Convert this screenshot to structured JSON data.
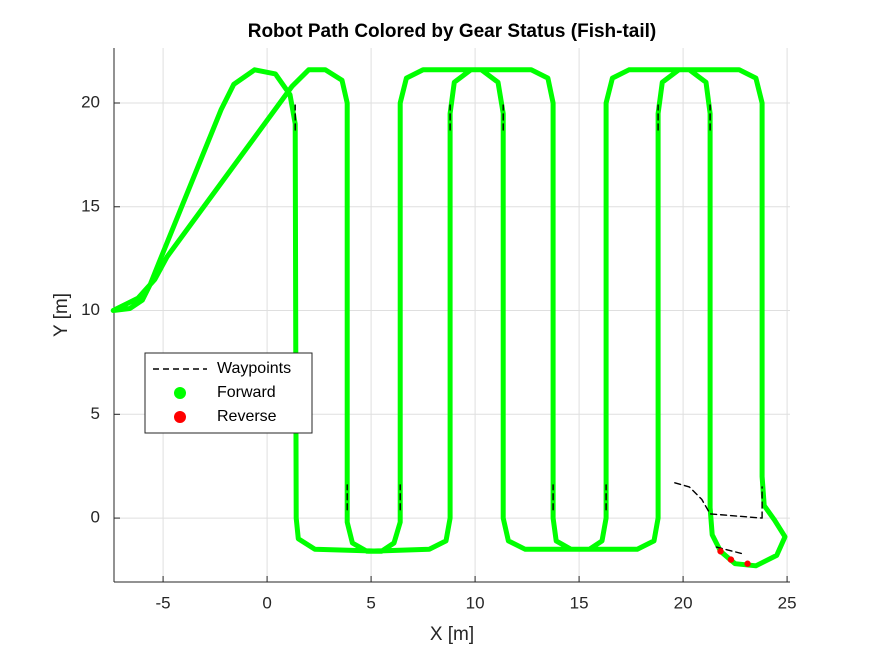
{
  "chart_data": {
    "type": "line",
    "title": "Robot Path Colored by Gear Status (Fish-tail)",
    "xlabel": "X [m]",
    "ylabel": "Y [m]",
    "xlim": [
      -7.36,
      25.14
    ],
    "ylim": [
      -3.08,
      22.65
    ],
    "xticks": [
      -5,
      0,
      5,
      10,
      15,
      20,
      25
    ],
    "yticks": [
      0,
      5,
      10,
      15,
      20
    ],
    "grid": true,
    "legend_position": "west",
    "series": [
      {
        "name": "Waypoints",
        "color": "#000000",
        "style": "dashed",
        "x": [
          1.35,
          1.35,
          null,
          8.8,
          8.8,
          null,
          11.35,
          11.35,
          null,
          18.8,
          18.8,
          null,
          21.3,
          21.3,
          null,
          3.85,
          3.85,
          null,
          6.4,
          6.4,
          null,
          13.75,
          13.75,
          null,
          16.3,
          16.3,
          null,
          23.8,
          23.8,
          null,
          19.6,
          20.3,
          20.9,
          21.3,
          23.8,
          null,
          21.6,
          22.8
        ],
        "y": [
          18.7,
          19.9,
          null,
          18.7,
          19.9,
          null,
          18.7,
          19.9,
          null,
          18.7,
          19.9,
          null,
          18.7,
          19.9,
          null,
          0.4,
          1.6,
          null,
          0.4,
          1.6,
          null,
          0.4,
          1.6,
          null,
          0.4,
          1.6,
          null,
          0.0,
          1.5,
          null,
          1.7,
          1.5,
          0.9,
          0.2,
          0.0,
          null,
          -1.4,
          -1.7
        ]
      },
      {
        "name": "Forward",
        "color": "#00ff00",
        "style": "thick",
        "x": [
          -7.4,
          -6.6,
          -6.0,
          -5.6,
          -5.2,
          -2.2,
          -1.6,
          -0.6,
          0.4,
          1.1,
          1.35,
          1.4,
          1.5,
          2.3,
          5.5,
          6.1,
          6.4,
          6.4,
          6.7,
          7.5,
          10.3,
          11.1,
          11.35,
          11.35,
          11.6,
          12.4,
          15.5,
          16.1,
          16.3,
          16.3,
          16.6,
          17.4,
          20.3,
          21.1,
          21.3,
          21.3,
          21.4,
          21.8,
          22.5,
          23.5,
          24.5,
          24.9,
          24.4,
          23.9,
          23.8,
          23.8,
          23.5,
          22.7,
          19.8,
          19.0,
          18.8,
          18.8,
          18.6,
          17.8,
          14.6,
          13.9,
          13.75,
          13.75,
          13.5,
          12.7,
          9.8,
          9.0,
          8.8,
          8.8,
          8.6,
          7.8,
          4.8,
          4.1,
          3.85,
          3.85,
          3.6,
          2.8,
          2.0,
          1.2,
          -4.8,
          -5.4,
          -6.2,
          -7.0,
          -7.4
        ],
        "y": [
          10.0,
          10.1,
          10.5,
          11.3,
          12.3,
          19.7,
          20.9,
          21.6,
          21.4,
          20.4,
          19.0,
          0.0,
          -1.0,
          -1.5,
          -1.6,
          -1.2,
          -0.2,
          20.0,
          21.2,
          21.6,
          21.6,
          21.0,
          19.5,
          0.0,
          -1.1,
          -1.5,
          -1.5,
          -1.1,
          0.0,
          20.0,
          21.2,
          21.6,
          21.6,
          21.0,
          19.5,
          0.5,
          -0.8,
          -1.6,
          -2.2,
          -2.3,
          -1.8,
          -0.9,
          -0.1,
          0.6,
          2.0,
          20.0,
          21.2,
          21.6,
          21.6,
          21.0,
          19.5,
          0.0,
          -1.1,
          -1.5,
          -1.5,
          -1.1,
          0.0,
          20.0,
          21.2,
          21.6,
          21.6,
          21.0,
          19.5,
          0.0,
          -1.1,
          -1.5,
          -1.6,
          -1.2,
          -0.2,
          20.0,
          21.1,
          21.6,
          21.6,
          20.8,
          12.6,
          11.5,
          10.6,
          10.2,
          10.0
        ]
      },
      {
        "name": "Reverse",
        "color": "#ff0000",
        "style": "dots",
        "x": [
          21.8,
          22.3,
          23.1
        ],
        "y": [
          -1.6,
          -2.0,
          -2.2
        ]
      }
    ]
  }
}
